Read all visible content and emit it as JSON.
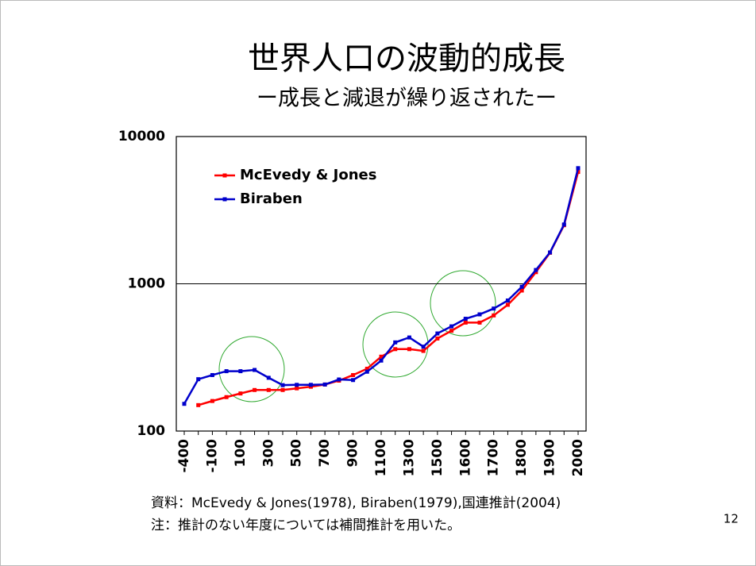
{
  "chart_data": {
    "type": "line",
    "title": "世界人口の波動的成長",
    "subtitle": "ー成長と減退が繰り返されたー",
    "notes": [
      "資料：McEvedy & Jones(1978), Biraben(1979),国連推計(2004)",
      "注：推計のない年度については補間推計を用いた。"
    ],
    "page_number": "12",
    "categories": [
      "-400",
      null,
      "-100",
      null,
      "100",
      null,
      "300",
      null,
      "500",
      null,
      "700",
      null,
      "900",
      null,
      "1100",
      null,
      "1300",
      null,
      "1500",
      null,
      "1600",
      null,
      "1700",
      null,
      "1800",
      null,
      "1900",
      null,
      "2000"
    ],
    "series": [
      {
        "name": "McEvedy & Jones",
        "color": "#ff0000",
        "values": [
          null,
          150,
          160,
          170,
          180,
          190,
          190,
          190,
          195,
          200,
          207,
          220,
          240,
          265,
          320,
          360,
          360,
          350,
          425,
          480,
          545,
          545,
          610,
          720,
          900,
          1200,
          1625,
          2500,
          5750
        ]
      },
      {
        "name": "Biraben",
        "color": "#0000cc",
        "values": [
          153,
          225,
          240,
          255,
          255,
          260,
          230,
          205,
          206,
          206,
          207,
          224,
          222,
          253,
          301,
          400,
          432,
          374,
          460,
          514,
          579,
          620,
          679,
          770,
          954,
          1241,
          1633,
          2527,
          6100
        ]
      }
    ],
    "log_y": true,
    "ylim": [
      100,
      10000
    ],
    "yticks": [
      100,
      1000,
      10000
    ],
    "grid": true,
    "legend": "upper left"
  }
}
